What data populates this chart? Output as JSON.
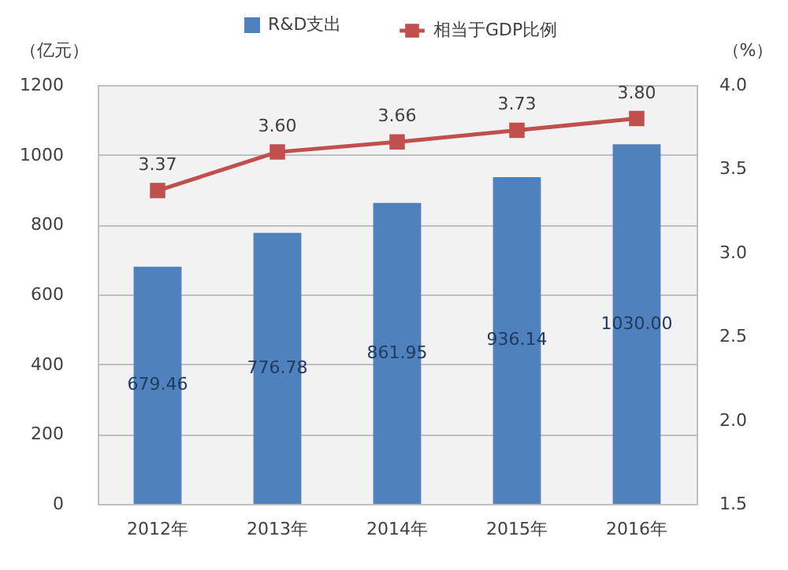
{
  "chart_data": {
    "type": "bar",
    "categories": [
      "2012年",
      "2013年",
      "2014年",
      "2015年",
      "2016年"
    ],
    "ylabel": "（亿元）",
    "y2label": "（%）",
    "ylim": [
      0,
      1200
    ],
    "yticks": [
      0,
      200,
      400,
      600,
      800,
      1000,
      1200
    ],
    "y2lim": [
      1.5,
      4.0
    ],
    "y2ticks": [
      {
        "value": 1.5,
        "label": "1.5"
      },
      {
        "value": 2.0,
        "label": "2.0"
      },
      {
        "value": 2.5,
        "label": "2.5"
      },
      {
        "value": 3.0,
        "label": "3.0"
      },
      {
        "value": 3.5,
        "label": "3.5"
      },
      {
        "value": 4.0,
        "label": "4.0"
      }
    ],
    "grid": "y",
    "legend": "top",
    "marker": "square",
    "line_style": "solid",
    "series": [
      {
        "name": "R&D支出",
        "color": "#4f81bd",
        "values": [
          679.46,
          776.78,
          861.95,
          936.14,
          1030.0
        ],
        "value_labels": [
          "679.46",
          "776.78",
          "861.95",
          "936.14",
          "1030.00"
        ]
      },
      {
        "name": "相当于GDP比例",
        "type": "line",
        "axis": "y2",
        "color": "#c0504d",
        "values": [
          3.37,
          3.6,
          3.66,
          3.73,
          3.8
        ],
        "value_labels": [
          "3.37",
          "3.60",
          "3.66",
          "3.73",
          "3.80"
        ]
      }
    ]
  }
}
